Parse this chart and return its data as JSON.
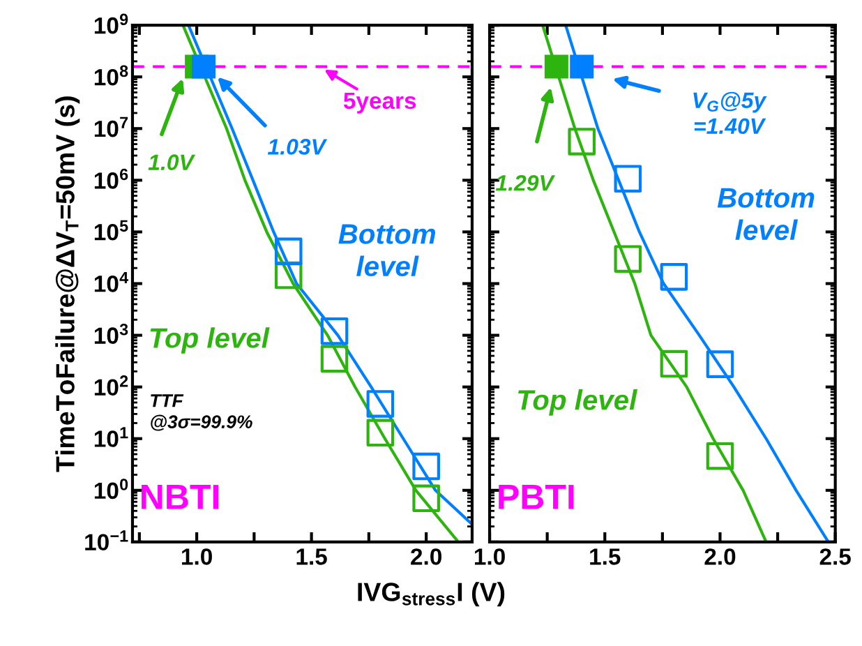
{
  "chart_data": [
    {
      "type": "line",
      "title": "NBTI",
      "ylabel": "TimeToFailure@ΔV$_{T}$=50mV (s)",
      "xlabel": "IVG$_{stress}$I (V)",
      "log": "y",
      "xlim": [
        0.72,
        2.2
      ],
      "ylim": [
        0.1,
        1000000000
      ],
      "xticks": [
        {
          "value": 0.75,
          "label": null
        },
        {
          "value": 1.0,
          "label": "1.0"
        },
        {
          "value": 1.25,
          "label": null
        },
        {
          "value": 1.5,
          "label": "1.5"
        },
        {
          "value": 1.75,
          "label": null
        },
        {
          "value": 2.0,
          "label": "2.0"
        }
      ],
      "yticks": [
        {
          "value": 0.1,
          "label": "10$^{−1}$"
        },
        {
          "value": 1,
          "label": "10$^{0}$"
        },
        {
          "value": 10,
          "label": "10$^{1}$"
        },
        {
          "value": 100,
          "label": "10$^{2}$"
        },
        {
          "value": 1000,
          "label": "10$^{3}$"
        },
        {
          "value": 10000,
          "label": "10$^{4}$"
        },
        {
          "value": 100000,
          "label": "10$^{5}$"
        },
        {
          "value": 1000000,
          "label": "10$^{6}$"
        },
        {
          "value": 10000000,
          "label": "10$^{7}$"
        },
        {
          "value": 100000000,
          "label": "10$^{8}$"
        },
        {
          "value": 1000000000,
          "label": "10$^{9}$"
        }
      ],
      "grid": false,
      "legend": false,
      "series": [
        {
          "color": "#2db40f",
          "marker": "none",
          "x": [
            0.94,
            1.13,
            1.21,
            1.305,
            1.42,
            1.57,
            1.69,
            1.82,
            1.955,
            2.14
          ],
          "values": [
            1000000000,
            10000000,
            1000000,
            100000,
            10000,
            1000,
            100,
            10,
            1,
            0.1
          ]
        },
        {
          "color": "#0080ff",
          "marker": "none",
          "x": [
            0.964,
            1.154,
            1.245,
            1.335,
            1.435,
            1.615,
            1.76,
            1.9,
            2.04,
            2.2
          ],
          "values": [
            1000000000,
            10000000,
            1000000,
            100000,
            10000,
            1000,
            100,
            10,
            1,
            0.22
          ]
        },
        {
          "type": "scatter",
          "name": "Top level",
          "color": "#2db40f",
          "marker": "square",
          "x": [
            1.4,
            1.6,
            1.8,
            2.0
          ],
          "values": [
            14500,
            350,
            13,
            0.7
          ]
        },
        {
          "type": "scatter",
          "name": "Bottom\nlevel",
          "color": "#0080ff",
          "marker": "square",
          "x": [
            1.4,
            1.6,
            1.8,
            2.0
          ],
          "values": [
            42000,
            1200,
            47,
            2.9
          ]
        },
        {
          "type": "scatter",
          "color": "#2db40f",
          "marker": "square",
          "x": [
            1.0
          ],
          "values": [
            158000000
          ]
        },
        {
          "type": "scatter",
          "color": "#0080ff",
          "marker": "square",
          "x": [
            1.03
          ],
          "values": [
            158000000
          ]
        }
      ],
      "ref_lines": [
        {
          "axis": "y",
          "value": 158000000,
          "label": "5years",
          "color": "#ff00ff",
          "line_style": "dashed"
        }
      ],
      "annotations": [
        "1.0V",
        "1.03V",
        "TTF\n@3σ=99.9%"
      ]
    },
    {
      "type": "line",
      "title": "PBTI",
      "log": "y",
      "tick_labels": "x",
      "xlim": [
        1.0,
        2.5
      ],
      "ylim": [
        0.1,
        1000000000
      ],
      "xticks": [
        {
          "value": 1.0,
          "label": "1.0"
        },
        {
          "value": 1.25,
          "label": null
        },
        {
          "value": 1.5,
          "label": "1.5"
        },
        {
          "value": 1.75,
          "label": null
        },
        {
          "value": 2.0,
          "label": "2.0"
        },
        {
          "value": 2.25,
          "label": null
        },
        {
          "value": 2.5,
          "label": "2.5"
        }
      ],
      "yticks": [
        {
          "value": 0.1,
          "label": null
        },
        {
          "value": 1,
          "label": null
        },
        {
          "value": 10,
          "label": null
        },
        {
          "value": 100,
          "label": null
        },
        {
          "value": 1000,
          "label": null
        },
        {
          "value": 10000,
          "label": null
        },
        {
          "value": 100000,
          "label": null
        },
        {
          "value": 1000000,
          "label": null
        },
        {
          "value": 10000000,
          "label": null
        },
        {
          "value": 100000000,
          "label": null
        },
        {
          "value": 1000000000,
          "label": null
        }
      ],
      "grid": false,
      "legend": false,
      "series": [
        {
          "color": "#2db40f",
          "marker": "none",
          "x": [
            1.23,
            1.37,
            1.45,
            1.54,
            1.63,
            1.7,
            1.855,
            1.97,
            2.1,
            2.2
          ],
          "values": [
            1000000000,
            10000000,
            1000000,
            100000,
            10000,
            1000,
            100,
            10,
            1,
            0.1
          ]
        },
        {
          "color": "#0080ff",
          "marker": "none",
          "x": [
            1.33,
            1.47,
            1.56,
            1.65,
            1.755,
            1.91,
            2.06,
            2.2,
            2.33,
            2.47
          ],
          "values": [
            1000000000,
            10000000,
            1000000,
            100000,
            10000,
            1000,
            100,
            10,
            1,
            0.1
          ]
        },
        {
          "type": "scatter",
          "name": "Top level",
          "color": "#2db40f",
          "marker": "square",
          "x": [
            1.4,
            1.6,
            1.8,
            2.0
          ],
          "values": [
            5600000,
            30000,
            280,
            4.6
          ]
        },
        {
          "type": "scatter",
          "name": "Bottom\nlevel",
          "color": "#0080ff",
          "marker": "square",
          "x": [
            1.6,
            1.8,
            2.0
          ],
          "values": [
            1070000,
            13500,
            275
          ]
        },
        {
          "type": "scatter",
          "color": "#2db40f",
          "marker": "square",
          "x": [
            1.29
          ],
          "values": [
            158000000
          ]
        },
        {
          "type": "scatter",
          "color": "#0080ff",
          "marker": "square",
          "x": [
            1.4
          ],
          "values": [
            158000000
          ]
        }
      ],
      "ref_lines": [
        {
          "axis": "y",
          "value": 158000000,
          "color": "#ff00ff",
          "line_style": "dashed"
        }
      ],
      "annotations": [
        "1.29V",
        "V$_{G}$@5y\n=1.40V"
      ]
    }
  ]
}
